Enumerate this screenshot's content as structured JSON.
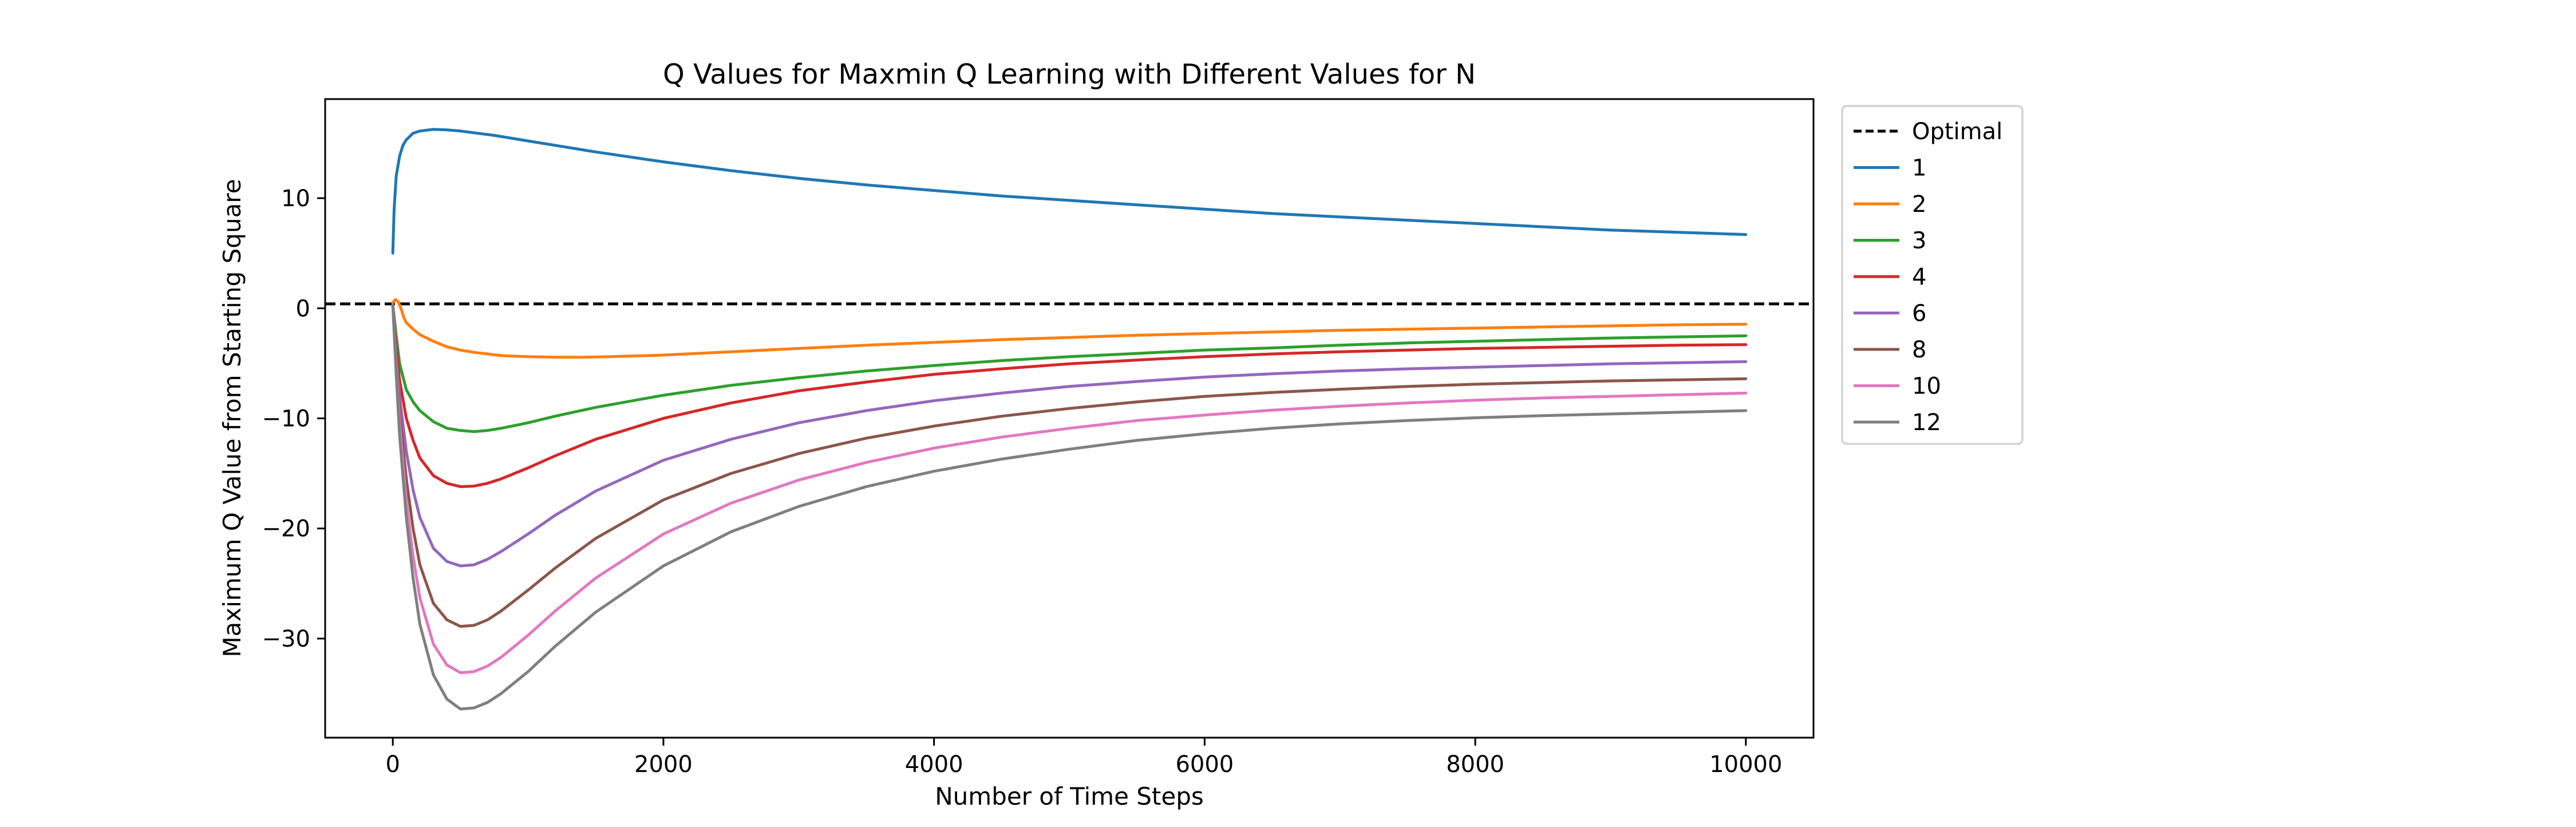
{
  "chart_data": {
    "type": "line",
    "title": "Q Values for Maxmin Q Learning with Different Values for N",
    "xlabel": "Number of Time Steps",
    "ylabel": "Maximum Q Value from Starting Square",
    "xlim": [
      -500,
      10500
    ],
    "ylim": [
      -39,
      19
    ],
    "x_ticks": [
      {
        "value": 0,
        "label": "0"
      },
      {
        "value": 2000,
        "label": "2000"
      },
      {
        "value": 4000,
        "label": "4000"
      },
      {
        "value": 6000,
        "label": "6000"
      },
      {
        "value": 8000,
        "label": "8000"
      },
      {
        "value": 10000,
        "label": "10000"
      }
    ],
    "y_ticks": [
      {
        "value": 10,
        "label": "10"
      },
      {
        "value": 0,
        "label": "0"
      },
      {
        "value": -10,
        "label": "−10"
      },
      {
        "value": -20,
        "label": "−20"
      },
      {
        "value": -30,
        "label": "−30"
      }
    ],
    "grid": false,
    "legend_position": "outside-top-right",
    "optimal": {
      "name": "Optimal",
      "value": 0.4,
      "color": "#000000",
      "style": "dashed"
    },
    "series": [
      {
        "name": "1",
        "color": "#1f77b4",
        "x": [
          0,
          10,
          25,
          50,
          75,
          100,
          150,
          200,
          300,
          400,
          500,
          750,
          1000,
          1500,
          2000,
          2500,
          3000,
          3500,
          4000,
          4500,
          5000,
          5500,
          6000,
          6500,
          7000,
          7500,
          8000,
          8500,
          9000,
          9500,
          10000
        ],
        "y": [
          5.0,
          9.0,
          12.0,
          13.8,
          14.8,
          15.3,
          15.9,
          16.1,
          16.25,
          16.2,
          16.1,
          15.7,
          15.2,
          14.2,
          13.3,
          12.5,
          11.8,
          11.2,
          10.7,
          10.2,
          9.8,
          9.4,
          9.0,
          8.6,
          8.3,
          8.0,
          7.7,
          7.4,
          7.1,
          6.9,
          6.7
        ]
      },
      {
        "name": "2",
        "color": "#ff7f0e",
        "x": [
          0,
          20,
          40,
          60,
          80,
          100,
          150,
          200,
          300,
          400,
          500,
          600,
          800,
          1000,
          1200,
          1400,
          1600,
          2000,
          2500,
          3000,
          3500,
          4000,
          4500,
          5000,
          5500,
          6000,
          6500,
          7000,
          7500,
          8000,
          8500,
          9000,
          9500,
          10000
        ],
        "y": [
          0.5,
          0.8,
          0.6,
          0.0,
          -0.8,
          -1.3,
          -1.9,
          -2.4,
          -3.0,
          -3.5,
          -3.8,
          -4.0,
          -4.3,
          -4.4,
          -4.45,
          -4.45,
          -4.4,
          -4.25,
          -3.95,
          -3.65,
          -3.35,
          -3.1,
          -2.85,
          -2.65,
          -2.45,
          -2.3,
          -2.15,
          -2.0,
          -1.9,
          -1.8,
          -1.7,
          -1.6,
          -1.5,
          -1.45
        ]
      },
      {
        "name": "3",
        "color": "#2ca02c",
        "x": [
          0,
          25,
          50,
          100,
          150,
          200,
          300,
          400,
          500,
          600,
          700,
          800,
          1000,
          1200,
          1500,
          2000,
          2500,
          3000,
          3500,
          4000,
          4500,
          5000,
          5500,
          6000,
          6500,
          7000,
          7500,
          8000,
          8500,
          9000,
          9500,
          10000
        ],
        "y": [
          0.3,
          -2.5,
          -5.0,
          -7.4,
          -8.5,
          -9.3,
          -10.3,
          -10.9,
          -11.1,
          -11.2,
          -11.1,
          -10.9,
          -10.4,
          -9.8,
          -9.0,
          -7.9,
          -7.0,
          -6.3,
          -5.7,
          -5.2,
          -4.75,
          -4.4,
          -4.1,
          -3.8,
          -3.6,
          -3.35,
          -3.15,
          -3.0,
          -2.85,
          -2.7,
          -2.6,
          -2.5
        ]
      },
      {
        "name": "4",
        "color": "#d62728",
        "x": [
          0,
          25,
          50,
          100,
          150,
          200,
          300,
          400,
          500,
          600,
          700,
          800,
          1000,
          1200,
          1500,
          2000,
          2500,
          3000,
          3500,
          4000,
          4500,
          5000,
          5500,
          6000,
          6500,
          7000,
          7500,
          8000,
          8500,
          9000,
          9500,
          10000
        ],
        "y": [
          0.3,
          -3.5,
          -6.5,
          -10.0,
          -12.0,
          -13.6,
          -15.2,
          -15.9,
          -16.2,
          -16.15,
          -15.9,
          -15.5,
          -14.5,
          -13.4,
          -11.9,
          -10.0,
          -8.6,
          -7.5,
          -6.7,
          -6.0,
          -5.5,
          -5.05,
          -4.7,
          -4.4,
          -4.15,
          -3.95,
          -3.8,
          -3.65,
          -3.55,
          -3.45,
          -3.35,
          -3.3
        ]
      },
      {
        "name": "6",
        "color": "#9467bd",
        "x": [
          0,
          25,
          50,
          100,
          150,
          200,
          300,
          400,
          500,
          600,
          700,
          800,
          1000,
          1200,
          1500,
          2000,
          2500,
          3000,
          3500,
          4000,
          4500,
          5000,
          5500,
          6000,
          6500,
          7000,
          7500,
          8000,
          8500,
          9000,
          9500,
          10000
        ],
        "y": [
          0.3,
          -4.5,
          -8.0,
          -13.0,
          -16.5,
          -19.0,
          -21.8,
          -23.0,
          -23.4,
          -23.3,
          -22.8,
          -22.1,
          -20.5,
          -18.8,
          -16.6,
          -13.8,
          -11.9,
          -10.4,
          -9.3,
          -8.4,
          -7.7,
          -7.1,
          -6.65,
          -6.25,
          -5.95,
          -5.7,
          -5.5,
          -5.35,
          -5.2,
          -5.05,
          -4.95,
          -4.85
        ]
      },
      {
        "name": "8",
        "color": "#8c564b",
        "x": [
          0,
          25,
          50,
          100,
          150,
          200,
          300,
          400,
          500,
          600,
          700,
          800,
          1000,
          1200,
          1500,
          2000,
          2500,
          3000,
          3500,
          4000,
          4500,
          5000,
          5500,
          6000,
          6500,
          7000,
          7500,
          8000,
          8500,
          9000,
          9500,
          10000
        ],
        "y": [
          0.3,
          -5.0,
          -9.5,
          -15.5,
          -20.0,
          -23.3,
          -26.8,
          -28.3,
          -28.9,
          -28.8,
          -28.3,
          -27.5,
          -25.6,
          -23.6,
          -20.9,
          -17.4,
          -15.0,
          -13.2,
          -11.8,
          -10.7,
          -9.8,
          -9.1,
          -8.5,
          -8.0,
          -7.65,
          -7.35,
          -7.1,
          -6.9,
          -6.75,
          -6.6,
          -6.5,
          -6.4
        ]
      },
      {
        "name": "10",
        "color": "#e377c2",
        "x": [
          0,
          25,
          50,
          100,
          150,
          200,
          300,
          400,
          500,
          600,
          700,
          800,
          1000,
          1200,
          1500,
          2000,
          2500,
          3000,
          3500,
          4000,
          4500,
          5000,
          5500,
          6000,
          6500,
          7000,
          7500,
          8000,
          8500,
          9000,
          9500,
          10000
        ],
        "y": [
          0.3,
          -5.5,
          -10.5,
          -17.5,
          -22.5,
          -26.3,
          -30.5,
          -32.4,
          -33.1,
          -33.0,
          -32.5,
          -31.7,
          -29.7,
          -27.5,
          -24.5,
          -20.5,
          -17.7,
          -15.6,
          -14.0,
          -12.7,
          -11.7,
          -10.9,
          -10.2,
          -9.7,
          -9.25,
          -8.9,
          -8.6,
          -8.35,
          -8.15,
          -8.0,
          -7.85,
          -7.7
        ]
      },
      {
        "name": "12",
        "color": "#7f7f7f",
        "x": [
          0,
          25,
          50,
          100,
          150,
          200,
          300,
          400,
          500,
          600,
          700,
          800,
          1000,
          1200,
          1500,
          2000,
          2500,
          3000,
          3500,
          4000,
          4500,
          5000,
          5500,
          6000,
          6500,
          7000,
          7500,
          8000,
          8500,
          9000,
          9500,
          10000
        ],
        "y": [
          0.3,
          -6.0,
          -11.5,
          -19.0,
          -24.5,
          -28.7,
          -33.3,
          -35.5,
          -36.4,
          -36.3,
          -35.8,
          -35.0,
          -33.0,
          -30.7,
          -27.6,
          -23.4,
          -20.3,
          -18.0,
          -16.2,
          -14.8,
          -13.7,
          -12.8,
          -12.0,
          -11.4,
          -10.9,
          -10.5,
          -10.2,
          -9.95,
          -9.75,
          -9.6,
          -9.45,
          -9.3
        ]
      }
    ]
  }
}
